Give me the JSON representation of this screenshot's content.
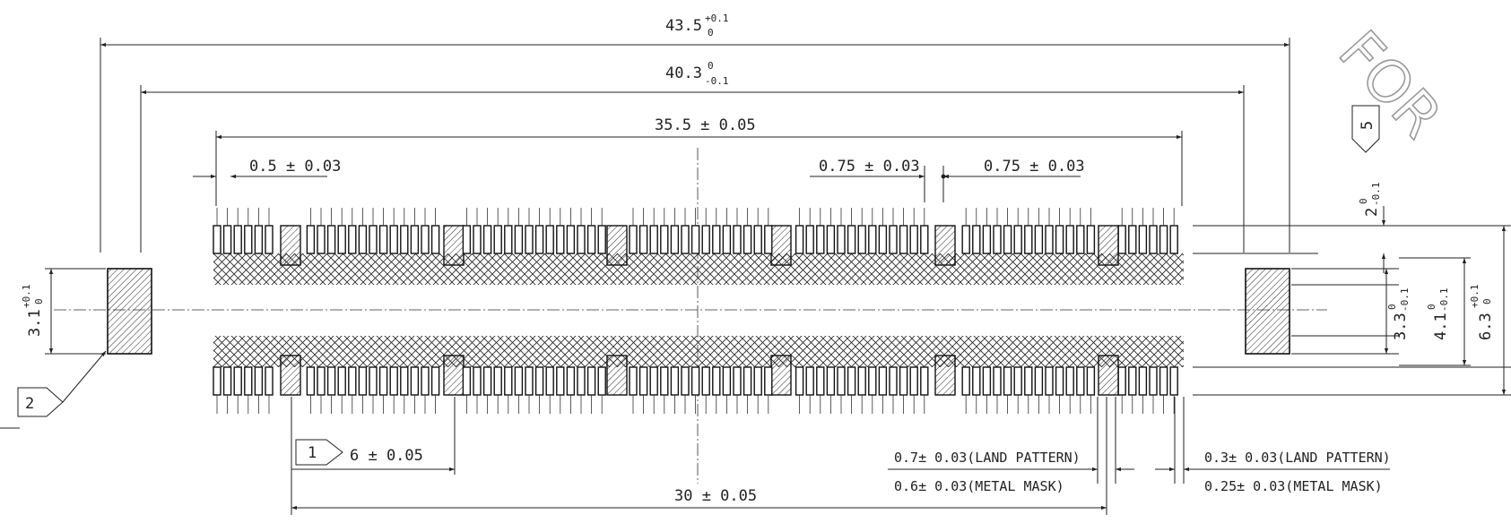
{
  "dimensions": {
    "overall": {
      "main": "43.5",
      "tol_upper": "+0.1",
      "tol_lower": "0"
    },
    "body": {
      "main": "40.3",
      "tol_upper": "0",
      "tol_lower": "-0.1"
    },
    "contact_span": "35.5 ± 0.05",
    "pad_width": "0.5 ± 0.03",
    "pitch_left": "0.75 ± 0.03",
    "pitch_right": "0.75 ± 0.03",
    "block_pitch": "6 ± 0.05",
    "outer_block_span": "30 ± 0.05",
    "left_height": {
      "main": "3.1",
      "tol_upper": "+0.1",
      "tol_lower": "0"
    },
    "right_gap": {
      "main": "2",
      "tol_upper": "0",
      "tol_lower": "-0.1"
    },
    "right_33": {
      "main": "3.3",
      "tol_upper": "0",
      "tol_lower": "-0.1"
    },
    "right_41": {
      "main": "4.1",
      "tol_upper": "0",
      "tol_lower": "-0.1"
    },
    "right_63": {
      "main": "6.3",
      "tol_upper": "+0.1",
      "tol_lower": "0"
    }
  },
  "notes": {
    "land_pattern_wide": "0.7± 0.03(LAND PATTERN)",
    "metal_mask_wide": "0.6± 0.03(METAL MASK)",
    "land_pattern_narrow": "0.3± 0.03(LAND PATTERN)",
    "metal_mask_narrow": "0.25± 0.03(METAL MASK)"
  },
  "callouts": {
    "tag1": "1",
    "tag2": "2",
    "tag5": "5"
  },
  "watermark": "FOR"
}
